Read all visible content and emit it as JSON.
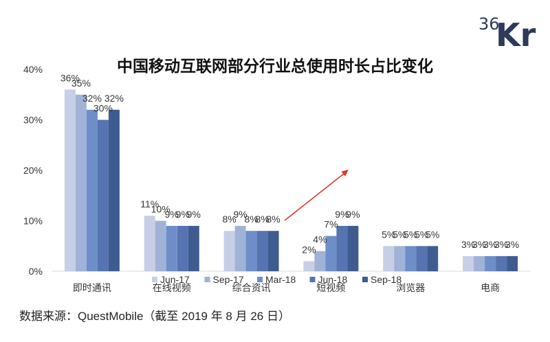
{
  "logo": {
    "prefix": "36",
    "main": "Kr"
  },
  "source_note": "数据来源：QuestMobile（截至 2019 年 8 月 26 日）",
  "colors": {
    "logo": "#2d3a5c",
    "arrow": "#e2342b",
    "axis": "#d9d9d9"
  },
  "chart_data": {
    "type": "bar",
    "title": "中国移动互联网部分行业总使用时长占比变化",
    "categories": [
      "即时通讯",
      "在线视频",
      "综合资讯",
      "短视频",
      "浏览器",
      "电商"
    ],
    "series": [
      {
        "name": "Jun-17",
        "color": "#c6cfe5",
        "values": [
          36,
          11,
          8,
          2,
          5,
          3
        ],
        "data_labels": [
          "36%",
          "11%",
          "8%",
          "2%",
          "5%",
          "3%"
        ]
      },
      {
        "name": "Sep-17",
        "color": "#a0b2d5",
        "values": [
          35,
          10,
          9,
          4,
          5,
          3
        ],
        "data_labels": [
          "35%",
          "10%",
          "9%",
          "4%",
          "5%",
          "3%"
        ]
      },
      {
        "name": "Mar-18",
        "color": "#6d8ec9",
        "values": [
          32,
          9,
          8,
          7,
          5,
          3
        ],
        "data_labels": [
          "32%",
          "9%",
          "8%",
          "7%",
          "5%",
          "3%"
        ]
      },
      {
        "name": "Jun-18",
        "color": "#5574b0",
        "values": [
          30,
          9,
          8,
          9,
          5,
          3
        ],
        "data_labels": [
          "30%",
          "9%",
          "8%",
          "9%",
          "5%",
          "3%"
        ]
      },
      {
        "name": "Sep-18",
        "color": "#3f5c90",
        "values": [
          32,
          9,
          8,
          9,
          5,
          3
        ],
        "data_labels": [
          "32%",
          "9%",
          "8%",
          "9%",
          "5%",
          "3%"
        ]
      }
    ],
    "ylim": [
      0,
      40
    ],
    "yticks": [
      0,
      10,
      20,
      30,
      40
    ],
    "ytick_labels": [
      "0%",
      "10%",
      "20%",
      "30%",
      "40%"
    ],
    "grid": false,
    "legend_position": "bottom"
  }
}
